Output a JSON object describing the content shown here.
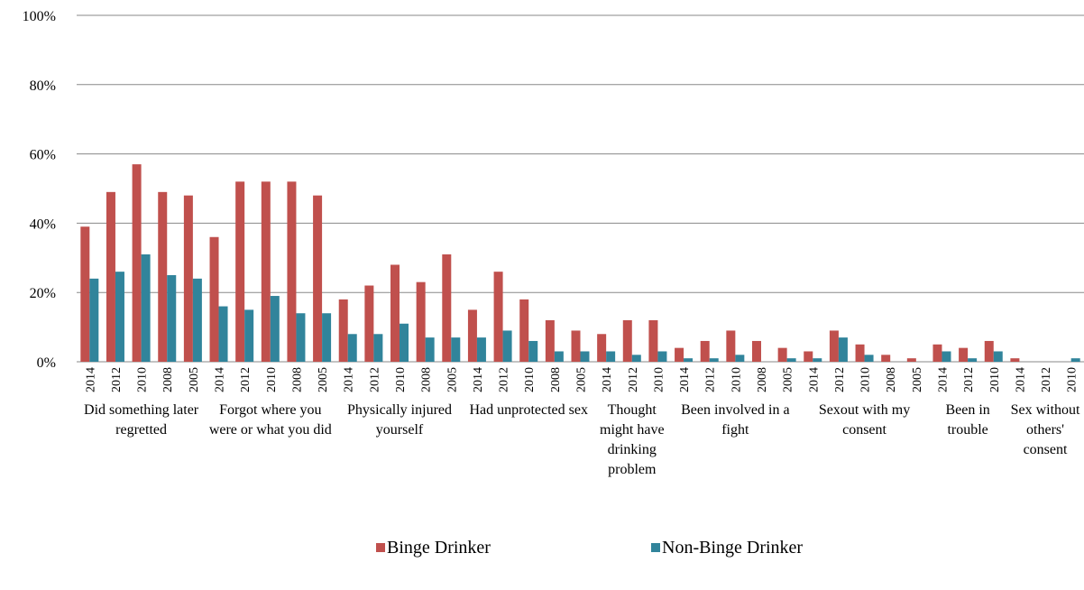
{
  "chart_data": {
    "type": "bar",
    "groups": [
      {
        "label": "Did something later regretted",
        "categories": [
          "2014",
          "2012",
          "2010",
          "2008",
          "2005"
        ]
      },
      {
        "label": "Forgot where you were or what you did",
        "categories": [
          "2014",
          "2012",
          "2010",
          "2008",
          "2005"
        ]
      },
      {
        "label": "Physically injured yourself",
        "categories": [
          "2014",
          "2012",
          "2010",
          "2008",
          "2005"
        ]
      },
      {
        "label": "Had unprotected sex",
        "categories": [
          "2014",
          "2012",
          "2010",
          "2008",
          "2005"
        ]
      },
      {
        "label": "Thought might have drinking problem",
        "categories": [
          "2014",
          "2012",
          "2010"
        ]
      },
      {
        "label": "Been involved in a fight",
        "categories": [
          "2014",
          "2012",
          "2010",
          "2008",
          "2005"
        ]
      },
      {
        "label": "Sexout with my consent",
        "categories": [
          "2014",
          "2012",
          "2010",
          "2008",
          "2005"
        ]
      },
      {
        "label": "Been in trouble",
        "categories": [
          "2014",
          "2012",
          "2010"
        ]
      },
      {
        "label": "Sex without others' consent",
        "categories": [
          "2014",
          "2012",
          "2010"
        ]
      }
    ],
    "series": [
      {
        "name": "Binge Drinker",
        "color": "#c0504d",
        "values": [
          [
            39,
            49,
            57,
            49,
            48
          ],
          [
            36,
            52,
            52,
            52,
            48
          ],
          [
            18,
            22,
            28,
            23,
            31
          ],
          [
            15,
            26,
            18,
            12,
            9
          ],
          [
            8,
            12,
            12
          ],
          [
            4,
            6,
            9,
            6,
            4
          ],
          [
            3,
            9,
            5,
            2,
            1
          ],
          [
            5,
            4,
            6
          ],
          [
            1,
            0,
            0
          ]
        ]
      },
      {
        "name": "Non-Binge Drinker",
        "color": "#31849b",
        "values": [
          [
            24,
            26,
            31,
            25,
            24
          ],
          [
            16,
            15,
            19,
            14,
            14
          ],
          [
            8,
            8,
            11,
            7,
            7
          ],
          [
            7,
            9,
            6,
            3,
            3
          ],
          [
            3,
            2,
            3
          ],
          [
            1,
            1,
            2,
            0,
            1
          ],
          [
            1,
            7,
            2,
            0,
            0
          ],
          [
            3,
            1,
            3
          ],
          [
            0,
            0,
            1
          ]
        ]
      }
    ],
    "ylim": [
      0,
      100
    ],
    "yticks": [
      {
        "value": 0,
        "label": "0%"
      },
      {
        "value": 20,
        "label": "20%"
      },
      {
        "value": 40,
        "label": "40%"
      },
      {
        "value": 60,
        "label": "60%"
      },
      {
        "value": 80,
        "label": "80%"
      },
      {
        "value": 100,
        "label": "100%"
      }
    ],
    "grid": true
  }
}
